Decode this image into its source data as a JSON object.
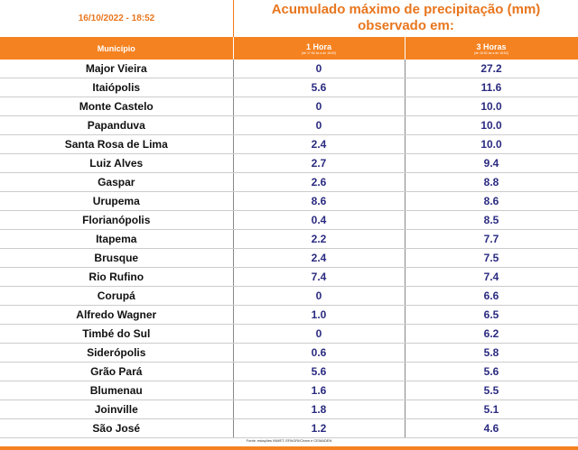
{
  "header": {
    "timestamp": "16/10/2022 - 18:52",
    "title_line1": "Acumulado máximo de precipitação (mm)",
    "title_line2": "observado em:"
  },
  "table": {
    "columns": [
      {
        "label": "Município"
      },
      {
        "label": "1 Hora",
        "note": "(de 17:52 às a de 18:52)"
      },
      {
        "label": "3 Horas",
        "note": "(de 15:52 às a de 18:52)"
      }
    ],
    "rows": [
      [
        "Major Vieira",
        "0",
        "27.2"
      ],
      [
        "Itaiópolis",
        "5.6",
        "11.6"
      ],
      [
        "Monte Castelo",
        "0",
        "10.0"
      ],
      [
        "Papanduva",
        "0",
        "10.0"
      ],
      [
        "Santa Rosa de Lima",
        "2.4",
        "10.0"
      ],
      [
        "Luiz Alves",
        "2.7",
        "9.4"
      ],
      [
        "Gaspar",
        "2.6",
        "8.8"
      ],
      [
        "Urupema",
        "8.6",
        "8.6"
      ],
      [
        "Florianópolis",
        "0.4",
        "8.5"
      ],
      [
        "Itapema",
        "2.2",
        "7.7"
      ],
      [
        "Brusque",
        "2.4",
        "7.5"
      ],
      [
        "Rio Rufino",
        "7.4",
        "7.4"
      ],
      [
        "Corupá",
        "0",
        "6.6"
      ],
      [
        "Alfredo Wagner",
        "1.0",
        "6.5"
      ],
      [
        "Timbé do Sul",
        "0",
        "6.2"
      ],
      [
        "Siderópolis",
        "0.6",
        "5.8"
      ],
      [
        "Grão Pará",
        "5.6",
        "5.6"
      ],
      [
        "Blumenau",
        "1.6",
        "5.5"
      ],
      [
        "Joinville",
        "1.8",
        "5.1"
      ],
      [
        "São José",
        "1.2",
        "4.6"
      ]
    ]
  },
  "footer": {
    "source": "Fonte: estações INMET, EPAGRI/Ciram e CEMADEN"
  }
}
